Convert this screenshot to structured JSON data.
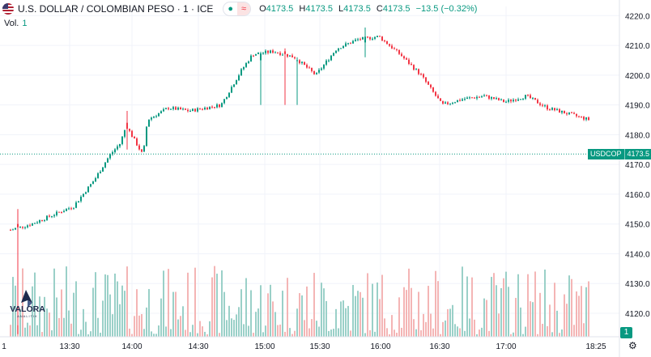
{
  "header": {
    "title": "U.S. DOLLAR / COLOMBIAN PESO · 1 · ICE",
    "open_label": "O",
    "open": "4173.5",
    "high_label": "H",
    "high": "4173.5",
    "low_label": "L",
    "low": "4173.5",
    "close_label": "C",
    "close": "4173.5",
    "change": "−13.5 (−0.32%)",
    "dot_symbol": "●",
    "wave_symbol": "≈"
  },
  "volume": {
    "label": "Vol.",
    "value": "1"
  },
  "logo": {
    "text": "VALORA",
    "subtext": "ANALITIK"
  },
  "price_tag": {
    "symbol": "USDCOP",
    "value": "4173.5"
  },
  "scale_badge": "1",
  "gear_symbol": "⚙",
  "colors": {
    "up": "#089981",
    "down": "#f23645",
    "up_vol": "#9ad0c8",
    "down_vol": "#f4b5b5",
    "grid": "#f0f3fa"
  },
  "chart_data": {
    "type": "candlestick",
    "symbol": "USDCOP",
    "last_price": 4173.5,
    "ylim": [
      4113,
      4223
    ],
    "y_ticks": [
      4120.0,
      4130.0,
      4140.0,
      4150.0,
      4160.0,
      4170.0,
      4180.0,
      4190.0,
      4200.0,
      4210.0,
      4220.0
    ],
    "x_tick_labels": [
      "1",
      "13:30",
      "14:00",
      "14:30",
      "15:00",
      "15:30",
      "16:00",
      "16:30",
      "17:00",
      "18:25"
    ],
    "price_path": [
      [
        "13:03",
        4151
      ],
      [
        "13:05",
        4148
      ],
      [
        "13:15",
        4150
      ],
      [
        "13:25",
        4153
      ],
      [
        "13:35",
        4156
      ],
      [
        "13:45",
        4165
      ],
      [
        "13:52",
        4173
      ],
      [
        "13:57",
        4177
      ],
      [
        "14:00",
        4183
      ],
      [
        "14:08",
        4173
      ],
      [
        "14:10",
        4185
      ],
      [
        "14:20",
        4189
      ],
      [
        "14:30",
        4188
      ],
      [
        "14:45",
        4190
      ],
      [
        "14:55",
        4202
      ],
      [
        "15:00",
        4207
      ],
      [
        "15:10",
        4208
      ],
      [
        "15:20",
        4206
      ],
      [
        "15:30",
        4200
      ],
      [
        "15:40",
        4209
      ],
      [
        "15:50",
        4212
      ],
      [
        "16:00",
        4213
      ],
      [
        "16:10",
        4207
      ],
      [
        "16:20",
        4200
      ],
      [
        "16:30",
        4190
      ],
      [
        "16:40",
        4192
      ],
      [
        "16:50",
        4193
      ],
      [
        "17:00",
        4191
      ],
      [
        "17:10",
        4193
      ],
      [
        "17:20",
        4189
      ],
      [
        "17:30",
        4187
      ],
      [
        "17:40",
        4185
      ]
    ],
    "grid": true
  }
}
